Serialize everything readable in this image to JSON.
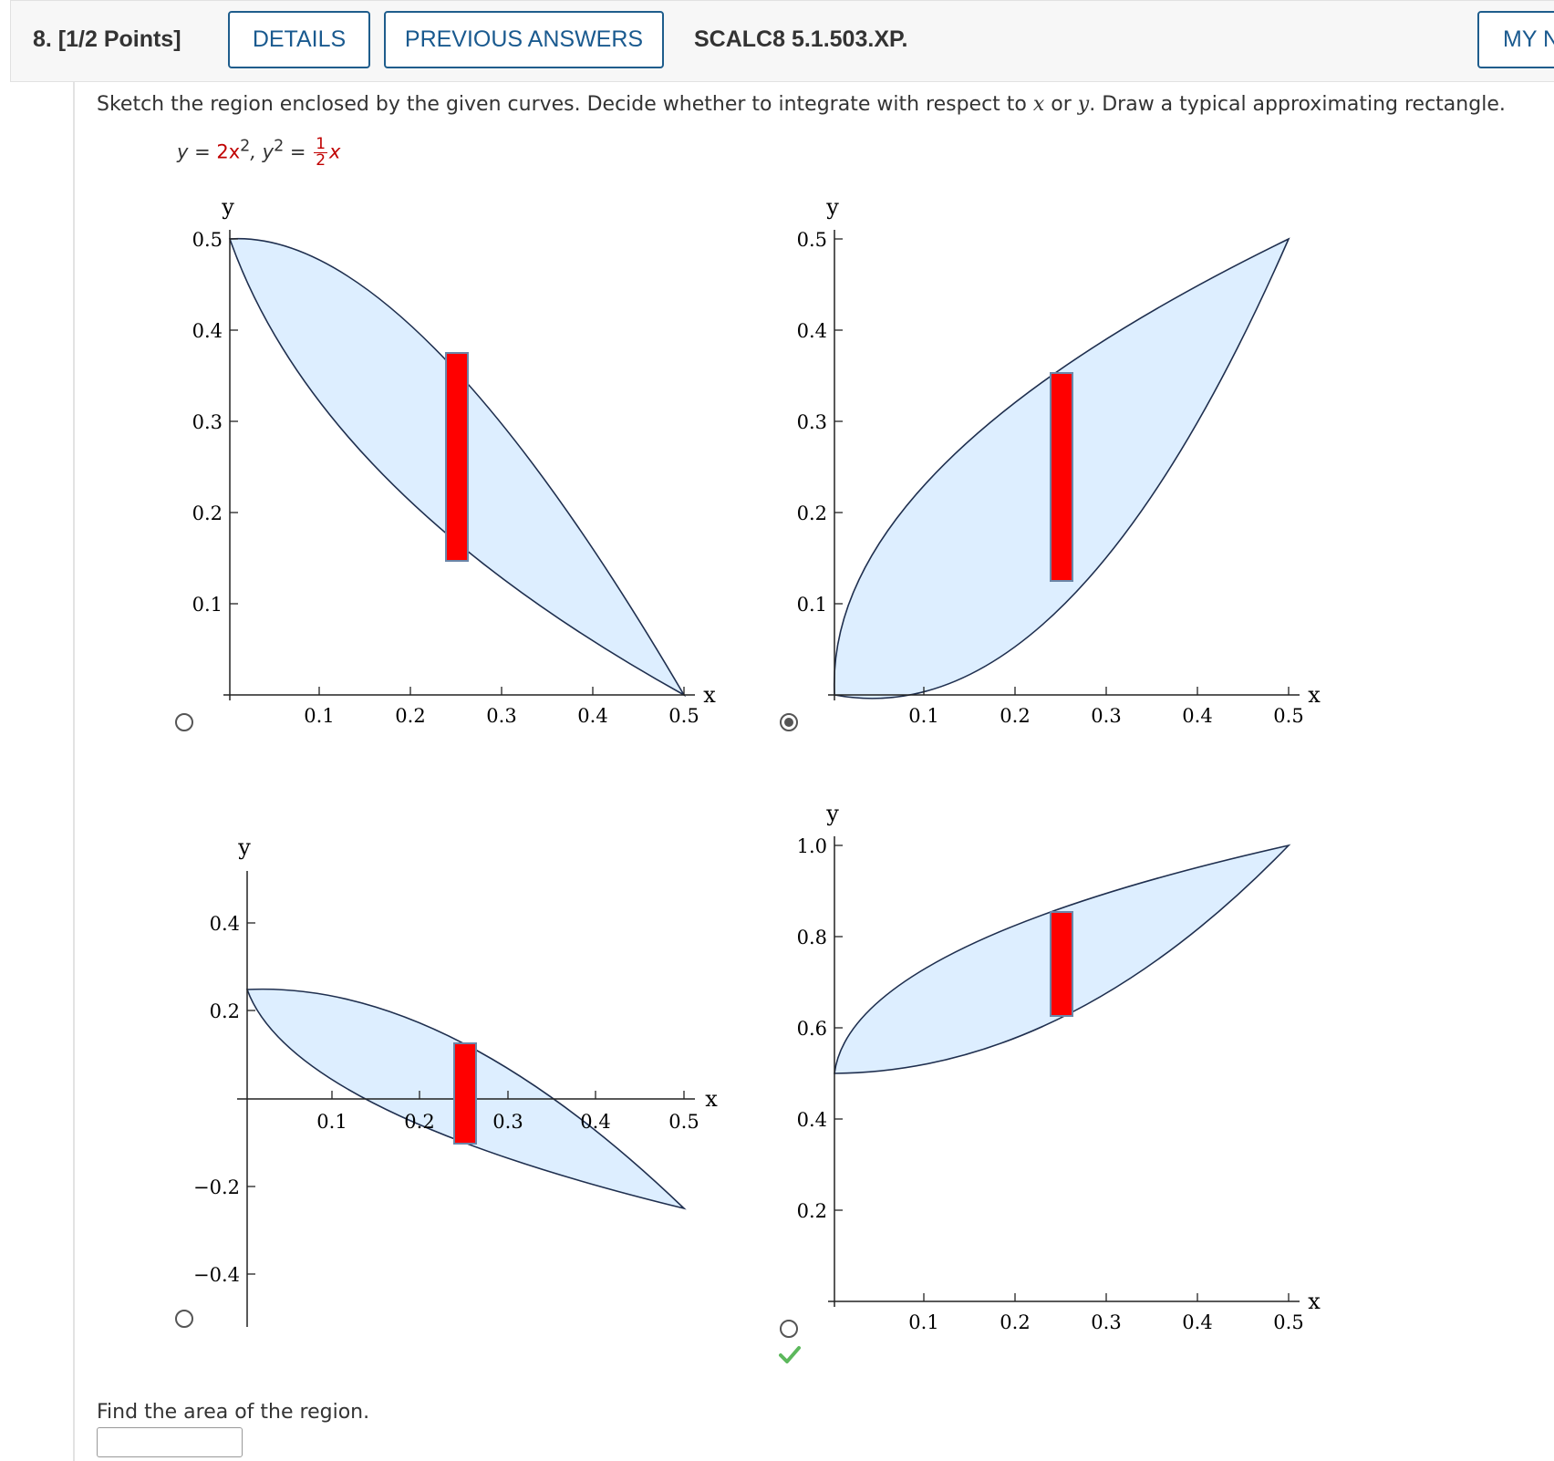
{
  "header": {
    "question_number": "8.  [1/2 Points]",
    "details_label": "DETAILS",
    "previous_answers_label": "PREVIOUS ANSWERS",
    "question_id": "SCALC8 5.1.503.XP.",
    "my_notes_label": "MY N"
  },
  "prompt": {
    "text_part1": "Sketch the region enclosed by the given curves. Decide whether to integrate with respect to ",
    "var_x": "x",
    "text_part2": " or ",
    "var_y": "y",
    "text_part3": ". Draw a typical approximating rectangle."
  },
  "equation": {
    "lhs1": "y = ",
    "rhs1": "2x",
    "exp1": "2",
    "sep": ",   y",
    "exp2": "2",
    "eq2": " = ",
    "frac_num": "1",
    "frac_den": "2",
    "rhs2": "x"
  },
  "choices": [
    {
      "id": "A",
      "selected": false,
      "x_axis_label": "x",
      "y_axis_label": "y",
      "x_ticks": [
        "0.1",
        "0.2",
        "0.3",
        "0.4",
        "0.5"
      ],
      "y_ticks": [
        "0.5",
        "0.4",
        "0.3",
        "0.2",
        "0.1"
      ]
    },
    {
      "id": "B",
      "selected": true,
      "x_axis_label": "x",
      "y_axis_label": "y",
      "x_ticks": [
        "0.1",
        "0.2",
        "0.3",
        "0.4",
        "0.5"
      ],
      "y_ticks": [
        "0.5",
        "0.4",
        "0.3",
        "0.2",
        "0.1"
      ]
    },
    {
      "id": "C",
      "selected": false,
      "x_axis_label": "x",
      "y_axis_label": "y",
      "x_ticks": [
        "0.1",
        "0.2",
        "0.3",
        "0.4",
        "0.5"
      ],
      "y_ticks": [
        "0.4",
        "0.2",
        "−0.2",
        "−0.4"
      ]
    },
    {
      "id": "D",
      "selected": false,
      "x_axis_label": "x",
      "y_axis_label": "y",
      "x_ticks": [
        "0.1",
        "0.2",
        "0.3",
        "0.4",
        "0.5"
      ],
      "y_ticks": [
        "1.0",
        "0.8",
        "0.6",
        "0.4",
        "0.2"
      ]
    }
  ],
  "feedback": {
    "correct_icon": "check-icon"
  },
  "area": {
    "label": "Find the area of the region.",
    "value": ""
  },
  "colors": {
    "region_fill": "#ddeeff",
    "rectangle": "#ff0000",
    "link": "#1a5a8f",
    "check": "#5cb85c"
  }
}
